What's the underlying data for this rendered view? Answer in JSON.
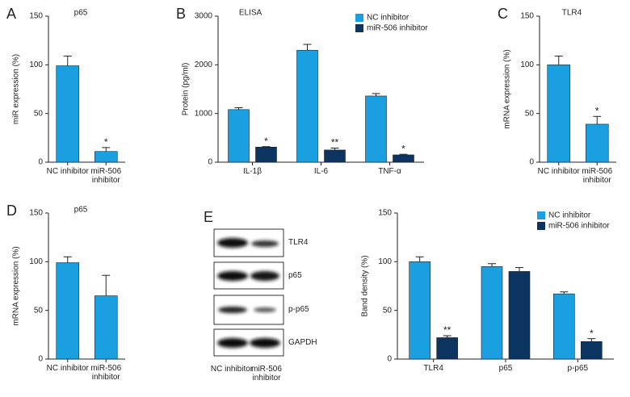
{
  "chart_data": [
    {
      "type": "bar",
      "label": "A",
      "title": "p65",
      "y_label": "miR expression (%)",
      "categories": [
        "NC inhibitor",
        "miR-506 inhibitor"
      ],
      "values": [
        99,
        11
      ],
      "errors": [
        10,
        4
      ],
      "annotations": [
        null,
        "*"
      ],
      "color": "#1a9fe0",
      "ylim": [
        0,
        150
      ],
      "yticks": [
        0,
        50,
        100,
        150
      ]
    },
    {
      "type": "grouped-bar",
      "label": "B",
      "title": "ELISA",
      "y_label": "Protein (pg/ml)",
      "categories": [
        "IL-1β",
        "IL-6",
        "TNF-α"
      ],
      "series": [
        {
          "name": "NC inhibitor",
          "color": "#1a9fe0",
          "values": [
            1080,
            2300,
            1360
          ],
          "errors": [
            40,
            120,
            50
          ],
          "annotations": [
            null,
            null,
            null
          ]
        },
        {
          "name": "miR-506 inhibitor",
          "color": "#0c3461",
          "values": [
            310,
            250,
            150
          ],
          "errors": [
            10,
            40,
            12
          ],
          "annotations": [
            "*",
            "**",
            "*"
          ]
        }
      ],
      "legend": "upper right",
      "ylim": [
        0,
        3000
      ],
      "yticks": [
        0,
        1000,
        2000,
        3000
      ]
    },
    {
      "type": "bar",
      "label": "C",
      "title": "TLR4",
      "y_label": "mRNA expression (%)",
      "categories": [
        "NC inhibitor",
        "miR-506 inhibitor"
      ],
      "values": [
        100,
        39
      ],
      "errors": [
        9,
        8
      ],
      "annotations": [
        null,
        "*"
      ],
      "color": "#1a9fe0",
      "ylim": [
        0,
        150
      ],
      "yticks": [
        0,
        50,
        100,
        150
      ]
    },
    {
      "type": "bar",
      "label": "D",
      "title": "p65",
      "y_label": "mRNA expression (%)",
      "categories": [
        "NC inhibitor",
        "miR-506 inhibitor"
      ],
      "values": [
        99,
        65
      ],
      "errors": [
        6,
        21
      ],
      "annotations": [
        null,
        null
      ],
      "color": "#1a9fe0",
      "ylim": [
        0,
        150
      ],
      "yticks": [
        0,
        50,
        100,
        150
      ]
    },
    {
      "type": "grouped-bar",
      "y_label": "Band density (%)",
      "categories": [
        "TLR4",
        "p65",
        "p-p65"
      ],
      "series": [
        {
          "name": "NC inhibitor",
          "color": "#1a9fe0",
          "values": [
            100,
            95,
            67
          ],
          "errors": [
            5,
            3,
            2
          ],
          "annotations": [
            null,
            null,
            null
          ]
        },
        {
          "name": "miR-506 inhibitor",
          "color": "#0c3461",
          "values": [
            22,
            90,
            18
          ],
          "errors": [
            2,
            4,
            3
          ],
          "annotations": [
            "**",
            null,
            "*"
          ]
        }
      ],
      "legend": "upper right",
      "ylim": [
        0,
        150
      ],
      "yticks": [
        0,
        50,
        100,
        150
      ]
    }
  ],
  "blot": {
    "label": "E",
    "bands": [
      "TLR4",
      "p65",
      "p-p65",
      "GAPDH"
    ],
    "lanes": [
      "NC inhibitor",
      "miR-506 inhibitor"
    ]
  }
}
